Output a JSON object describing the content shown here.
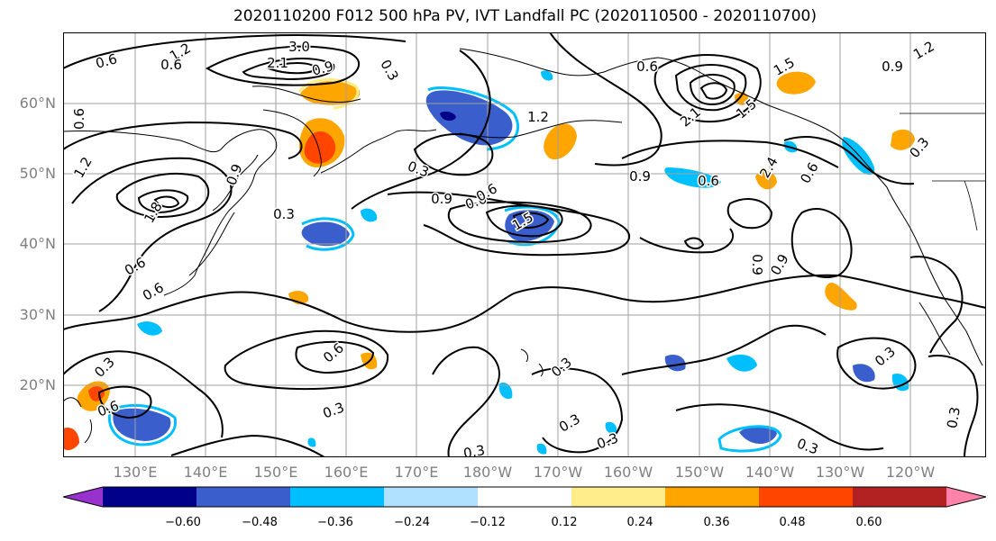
{
  "title": "2020110200 F012 500 hPa PV, IVT Landfall PC (2020110500 - 2020110700)",
  "lat_labels": [
    "60°N",
    "50°N",
    "40°N",
    "30°N",
    "20°N"
  ],
  "lon_labels": [
    "130°E",
    "140°E",
    "150°E",
    "160°E",
    "170°E",
    "180°W",
    "170°W",
    "160°W",
    "150°W",
    "140°W",
    "130°W",
    "120°W"
  ],
  "contour_labels": [
    "0.6",
    "1.2",
    "3.0",
    "2.1",
    "0.9",
    "0.3",
    "0.6",
    "1.5",
    "2.1",
    "0.9",
    "1.2",
    "0.6",
    "0.3",
    "0.9",
    "0.6",
    "1.2",
    "2.4",
    "1.5",
    "0.9",
    "0.6",
    "0.6",
    "1.2",
    "0.9",
    "0.9",
    "0.6",
    "1.5",
    "1.8",
    "0.3",
    "0.6",
    "0.6",
    "0.3",
    "0.3",
    "0.3",
    "0.3",
    "0.3",
    "0.3",
    "0.6",
    "0.3",
    "0.3",
    "0.3",
    "0.3",
    "0.9",
    "0.6",
    "0.6"
  ],
  "colorbar": {
    "colors": [
      "#9932cc",
      "#00008b",
      "#3a5fcd",
      "#00bfff",
      "#b0e2ff",
      "#ffffff",
      "#ffec8b",
      "#ffa500",
      "#ff4500",
      "#b22222",
      "#ff82ab"
    ],
    "ticks": [
      "−0.60",
      "−0.48",
      "−0.36",
      "−0.24",
      "−0.12",
      "0.12",
      "0.24",
      "0.36",
      "0.48",
      "0.60"
    ]
  },
  "palette": {
    "grid": "#a0a0a0",
    "contour": "#000000",
    "tick_label": "#808080"
  }
}
